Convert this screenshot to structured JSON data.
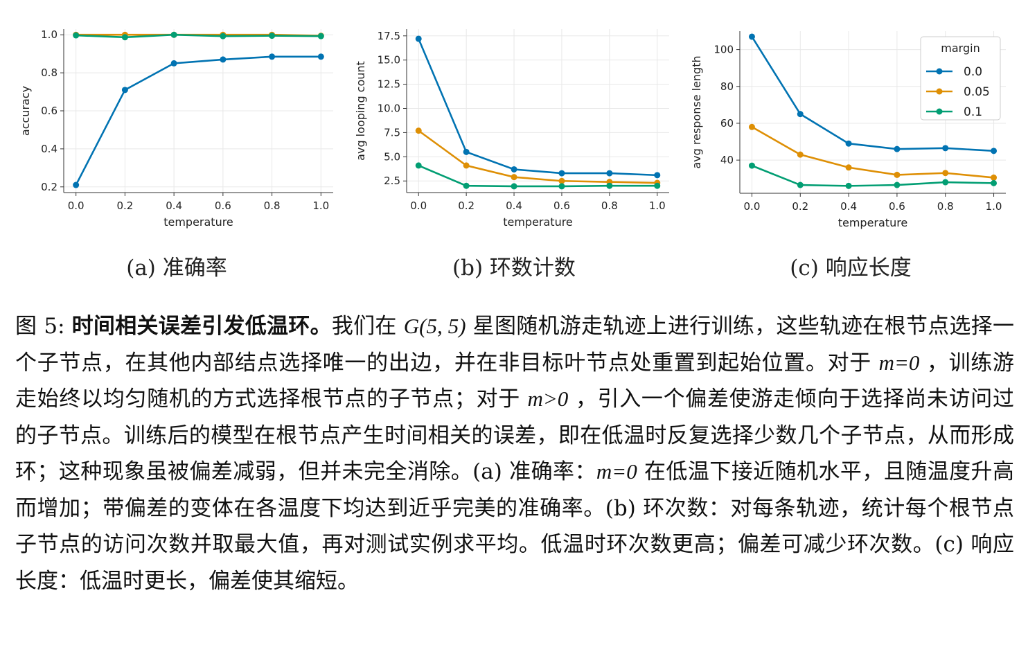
{
  "chart_data": [
    {
      "type": "line",
      "caption": "(a) 准确率",
      "x_label": "temperature",
      "y_label": "accuracy",
      "x": [
        0,
        0.2,
        0.4,
        0.6,
        0.8,
        1
      ],
      "xlim": [
        -0.05,
        1.05
      ],
      "xticks": [
        {
          "value": 0,
          "label": "0.0"
        },
        0.2,
        0.4,
        0.6,
        0.8,
        {
          "value": 1,
          "label": "1.0"
        }
      ],
      "ylim": [
        0.17,
        1.03
      ],
      "yticks": [
        0.2,
        0.4,
        0.6,
        0.8,
        {
          "value": 1,
          "label": "1.0"
        }
      ],
      "grid": true,
      "series": [
        {
          "color": "#0173b2",
          "values": [
            0.21,
            0.71,
            0.85,
            0.87,
            0.885,
            0.885
          ]
        },
        {
          "color": "#de8f05",
          "values": [
            1.0,
            1.0,
            1.0,
            1.0,
            1.0,
            0.995
          ]
        },
        {
          "color": "#029e73",
          "values": [
            0.997,
            0.987,
            1.0,
            0.993,
            0.995,
            0.993
          ]
        }
      ]
    },
    {
      "type": "line",
      "caption": "(b) 环数计数",
      "x_label": "temperature",
      "y_label": "avg looping count",
      "x": [
        0,
        0.2,
        0.4,
        0.6,
        0.8,
        1
      ],
      "xlim": [
        -0.05,
        1.05
      ],
      "xticks": [
        {
          "value": 0,
          "label": "0.0"
        },
        0.2,
        0.4,
        0.6,
        0.8,
        {
          "value": 1,
          "label": "1.0"
        }
      ],
      "ylim": [
        1.3,
        18.2
      ],
      "yticks": [
        2.5,
        {
          "value": 5,
          "label": "5.0"
        },
        7.5,
        {
          "value": 10,
          "label": "10.0"
        },
        12.5,
        {
          "value": 15,
          "label": "15.0"
        },
        17.5
      ],
      "grid": true,
      "series": [
        {
          "color": "#0173b2",
          "values": [
            17.2,
            5.5,
            3.7,
            3.3,
            3.3,
            3.1
          ]
        },
        {
          "color": "#de8f05",
          "values": [
            7.7,
            4.1,
            2.9,
            2.5,
            2.4,
            2.3
          ]
        },
        {
          "color": "#029e73",
          "values": [
            4.1,
            2.0,
            1.95,
            1.95,
            2.0,
            2.0
          ]
        }
      ]
    },
    {
      "type": "line",
      "caption": "(c) 响应长度",
      "x_label": "temperature",
      "y_label": "avg response length",
      "x": [
        0,
        0.2,
        0.4,
        0.6,
        0.8,
        1
      ],
      "xlim": [
        -0.05,
        1.05
      ],
      "xticks": [
        {
          "value": 0,
          "label": "0.0"
        },
        0.2,
        0.4,
        0.6,
        0.8,
        {
          "value": 1,
          "label": "1.0"
        }
      ],
      "ylim": [
        22,
        110
      ],
      "yticks": [
        40,
        60,
        80,
        100
      ],
      "grid": true,
      "legend": "upper right",
      "legend_title": "margin",
      "series": [
        {
          "name": "0.0",
          "color": "#0173b2",
          "values": [
            107,
            65,
            49,
            46,
            46.5,
            45
          ]
        },
        {
          "name": "0.05",
          "color": "#de8f05",
          "values": [
            58,
            43,
            36,
            32,
            33,
            30.5
          ]
        },
        {
          "name": "0.1",
          "color": "#029e73",
          "values": [
            37,
            26.5,
            26,
            26.5,
            28,
            27.5
          ]
        }
      ]
    }
  ],
  "figure_caption": [
    {
      "text": "图 5: ",
      "style": "normal"
    },
    {
      "text": "时间相关误差引发低温环。",
      "style": "bold"
    },
    {
      "text": "我们在 ",
      "style": "normal"
    },
    {
      "text": "G(5, 5)",
      "style": "math"
    },
    {
      "text": " 星图随机游走轨迹上进行训练，这些轨迹在根节点选择一个子节点，在其他内部结点选择唯一的出边，并在非目标叶节点处重置到起始位置。对于 ",
      "style": "normal"
    },
    {
      "text": "m=0",
      "style": "math"
    },
    {
      "text": " ，训练游走始终以均匀随机的方式选择根节点的子节点；对于 ",
      "style": "normal"
    },
    {
      "text": "m>0",
      "style": "math"
    },
    {
      "text": " ，引入一个偏差使游走倾向于选择尚未访问过的子节点。训练后的模型在根节点产生时间相关的误差，即在低温时反复选择少数几个子节点，从而形成环；这种现象虽被偏差减弱，但并未完全消除。(a) 准确率：",
      "style": "normal"
    },
    {
      "text": "m=0",
      "style": "math"
    },
    {
      "text": " 在低温下接近随机水平，且随温度升高而增加；带偏差的变体在各温度下均达到近乎完美的准确率。(b) 环次数：对每条轨迹，统计每个根节点子节点的访问次数并取最大值，再对测试实例求平均。低温时环次数更高；偏差可减少环次数。(c) 响应长度：低温时更长，偏差使其缩短。",
      "style": "normal"
    }
  ]
}
